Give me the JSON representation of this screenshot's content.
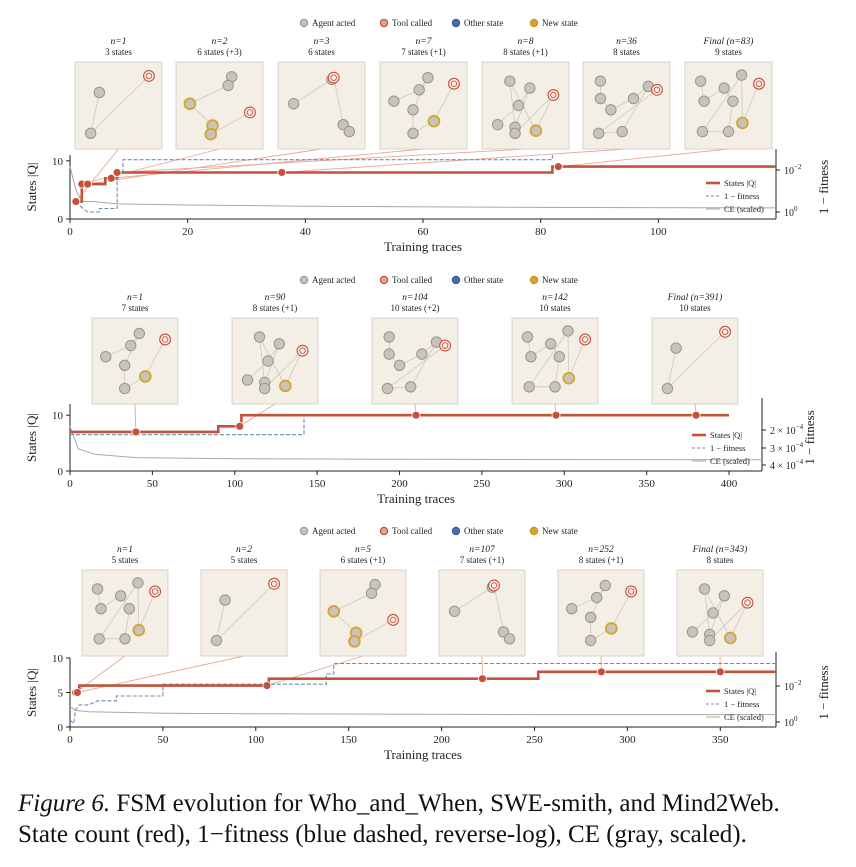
{
  "chart_data": [
    {
      "type": "line",
      "legend_top": [
        "Agent acted",
        "Tool called",
        "Other state",
        "New state"
      ],
      "xlabel": "Training traces",
      "ylabel": "States |Q|",
      "y2label": "1 − fitness",
      "xlim": [
        0,
        120
      ],
      "ylim": [
        0,
        11
      ],
      "xticks": [
        "0",
        "20",
        "40",
        "60",
        "80",
        "100"
      ],
      "yticks": [
        "0",
        "10"
      ],
      "y2ticks": [
        "10^-2",
        "10^0"
      ],
      "legend": [
        "States |Q|",
        "1 − fitness",
        "CE (scaled)"
      ],
      "states_series": [
        [
          1,
          3
        ],
        [
          2,
          3
        ],
        [
          2,
          6
        ],
        [
          6,
          6
        ],
        [
          6,
          7
        ],
        [
          8,
          7
        ],
        [
          8,
          8
        ],
        [
          82,
          8
        ],
        [
          82,
          9
        ],
        [
          120,
          9
        ]
      ],
      "fitness_series": [
        [
          1,
          3
        ],
        [
          2,
          2
        ],
        [
          3,
          1.2
        ],
        [
          5,
          1.2
        ],
        [
          5,
          1.8
        ],
        [
          8,
          1.8
        ],
        [
          8,
          8
        ],
        [
          9,
          8
        ],
        [
          9,
          10.2
        ],
        [
          82,
          10.2
        ],
        [
          82,
          11
        ]
      ],
      "ce_series": [
        [
          0,
          9
        ],
        [
          1,
          5
        ],
        [
          2,
          3
        ],
        [
          4,
          3
        ],
        [
          8,
          2.6
        ],
        [
          20,
          2.4
        ],
        [
          40,
          2.2
        ],
        [
          80,
          2
        ],
        [
          120,
          1.9
        ]
      ],
      "snapshots": [
        {
          "n": "n=1",
          "states": "3 states",
          "x": 1,
          "y": 3
        },
        {
          "n": "n=2",
          "states": "6 states (+3)",
          "x": 2,
          "y": 6
        },
        {
          "n": "n=3",
          "states": "6 states",
          "x": 3,
          "y": 6
        },
        {
          "n": "n=7",
          "states": "7 states (+1)",
          "x": 7,
          "y": 7
        },
        {
          "n": "n=8",
          "states": "8 states (+1)",
          "x": 8,
          "y": 8
        },
        {
          "n": "n=36",
          "states": "8 states",
          "x": 36,
          "y": 8
        },
        {
          "n": "Final (n=83)",
          "states": "9 states",
          "x": 83,
          "y": 9
        }
      ]
    },
    {
      "type": "line",
      "legend_top": [
        "Agent acted",
        "Tool called",
        "Other state",
        "New state"
      ],
      "xlabel": "Training traces",
      "ylabel": "States |Q|",
      "y2label": "1 − fitness",
      "xlim": [
        0,
        420
      ],
      "ylim": [
        0,
        12
      ],
      "xticks": [
        "0",
        "50",
        "100",
        "150",
        "200",
        "250",
        "300",
        "350",
        "400"
      ],
      "yticks": [
        "0",
        "10"
      ],
      "y2ticks": [
        "2 × 10^-4",
        "3 × 10^-4",
        "4 × 10^-4"
      ],
      "legend": [
        "States |Q|",
        "1 − fitness",
        "CE (scaled)"
      ],
      "states_series": [
        [
          0,
          7
        ],
        [
          90,
          7
        ],
        [
          90,
          8
        ],
        [
          104,
          8
        ],
        [
          104,
          10
        ],
        [
          400,
          10
        ]
      ],
      "fitness_series": [
        [
          0,
          6.5
        ],
        [
          142,
          6.5
        ],
        [
          142,
          10
        ]
      ],
      "ce_series": [
        [
          0,
          8
        ],
        [
          5,
          4
        ],
        [
          15,
          3
        ],
        [
          40,
          2.4
        ],
        [
          100,
          2.2
        ],
        [
          200,
          2.1
        ],
        [
          420,
          2
        ]
      ],
      "snapshots": [
        {
          "n": "n=1",
          "states": "7 states",
          "x": 40,
          "y": 7
        },
        {
          "n": "n=90",
          "states": "8 states (+1)",
          "x": 103,
          "y": 8
        },
        {
          "n": "n=104",
          "states": "10 states (+2)",
          "x": 210,
          "y": 10
        },
        {
          "n": "n=142",
          "states": "10 states",
          "x": 295,
          "y": 10
        },
        {
          "n": "Final (n=391)",
          "states": "10 states",
          "x": 380,
          "y": 10
        }
      ]
    },
    {
      "type": "line",
      "legend_top": [
        "Agent acted",
        "Tool called",
        "Other state",
        "New state"
      ],
      "xlabel": "Training traces",
      "ylabel": "States |Q|",
      "y2label": "1 − fitness",
      "xlim": [
        0,
        380
      ],
      "ylim": [
        0,
        10
      ],
      "xticks": [
        "0",
        "50",
        "100",
        "150",
        "200",
        "250",
        "300",
        "350"
      ],
      "yticks": [
        "0",
        "5",
        "10"
      ],
      "y2ticks": [
        "10^-2",
        "10^0"
      ],
      "legend": [
        "States |Q|",
        "1 − fitness",
        "CE (scaled)"
      ],
      "states_series": [
        [
          2,
          5
        ],
        [
          5,
          5
        ],
        [
          5,
          6
        ],
        [
          107,
          6
        ],
        [
          107,
          7
        ],
        [
          252,
          7
        ],
        [
          252,
          8
        ],
        [
          380,
          8
        ]
      ],
      "fitness_series": [
        [
          0,
          1
        ],
        [
          2,
          0.5
        ],
        [
          3,
          2.5
        ],
        [
          5,
          3.2
        ],
        [
          10,
          3.2
        ],
        [
          15,
          3.8
        ],
        [
          25,
          3.8
        ],
        [
          25,
          4.5
        ],
        [
          50,
          4.5
        ],
        [
          50,
          6.2
        ],
        [
          138,
          6.2
        ],
        [
          138,
          7.7
        ],
        [
          142,
          7.7
        ],
        [
          142,
          9.2
        ],
        [
          380,
          9.2
        ]
      ],
      "ce_series": [
        [
          0,
          3
        ],
        [
          3,
          2.4
        ],
        [
          10,
          2.2
        ],
        [
          50,
          2
        ],
        [
          120,
          1.9
        ],
        [
          250,
          1.8
        ],
        [
          380,
          1.8
        ]
      ],
      "snapshots": [
        {
          "n": "n=1",
          "states": "5 states",
          "x": 3,
          "y": 5
        },
        {
          "n": "n=2",
          "states": "5 states",
          "x": 4,
          "y": 5
        },
        {
          "n": "n=5",
          "states": "6 states (+1)",
          "x": 106,
          "y": 6
        },
        {
          "n": "n=107",
          "states": "7 states (+1)",
          "x": 222,
          "y": 7
        },
        {
          "n": "n=252",
          "states": "8 states (+1)",
          "x": 286,
          "y": 8
        },
        {
          "n": "Final (n=343)",
          "states": "8 states",
          "x": 350,
          "y": 8
        }
      ]
    }
  ],
  "caption": {
    "figure": "Figure 6.",
    "line1": " FSM evolution for Who_and_When, SWE-smith, and Mind2Web.",
    "line2": "State count (red), 1−fitness (blue dashed, reverse-log), CE (gray, scaled)."
  },
  "colors": {
    "states": "#c4523a",
    "fitness": "#6f8bb5",
    "ce": "#a8a8a8",
    "agent": "#c8c4bc",
    "tool": "#e2a294",
    "other": "#4a6fa8",
    "newstate": "#d4a62e",
    "thumb_bg": "#f3efe7"
  }
}
